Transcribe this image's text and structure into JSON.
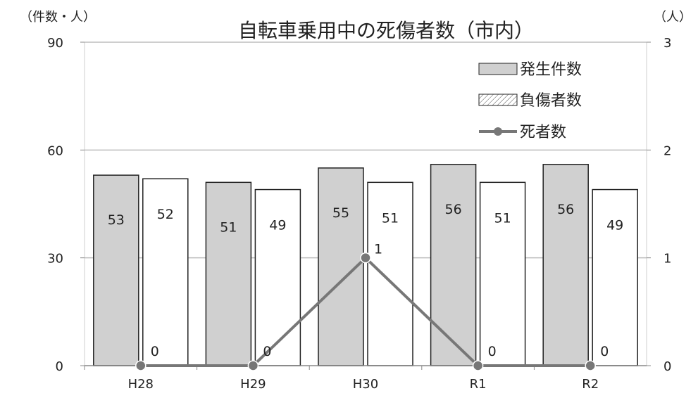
{
  "chart_data": {
    "type": "bar",
    "title": "自転車乗用中の死傷者数（市内）",
    "y_unit_left": "（件数・人）",
    "y_unit_right": "（人）",
    "categories": [
      "H28",
      "H29",
      "H30",
      "R1",
      "R2"
    ],
    "ylim_left": [
      0,
      90
    ],
    "yticks_left": [
      "0",
      "30",
      "60",
      "90"
    ],
    "ylim_right": [
      0,
      3
    ],
    "yticks_right": [
      "0",
      "1",
      "2",
      "3"
    ],
    "grid": true,
    "legend_position": "top-right",
    "series": [
      {
        "name": "発生件数",
        "kind": "bar",
        "axis": "left",
        "values": [
          53,
          51,
          55,
          56,
          56
        ],
        "labels": [
          "53",
          "51",
          "55",
          "56",
          "56"
        ],
        "color": "#d0d0d0"
      },
      {
        "name": "負傷者数",
        "kind": "bar",
        "axis": "left",
        "values": [
          52,
          49,
          51,
          51,
          49
        ],
        "labels": [
          "52",
          "49",
          "51",
          "51",
          "49"
        ],
        "color": "#ffffff"
      },
      {
        "name": "死者数",
        "kind": "line",
        "axis": "right",
        "values": [
          0,
          0,
          1,
          0,
          0
        ],
        "labels": [
          "0",
          "0",
          "1",
          "0",
          "0"
        ],
        "color": "#777777"
      }
    ]
  }
}
